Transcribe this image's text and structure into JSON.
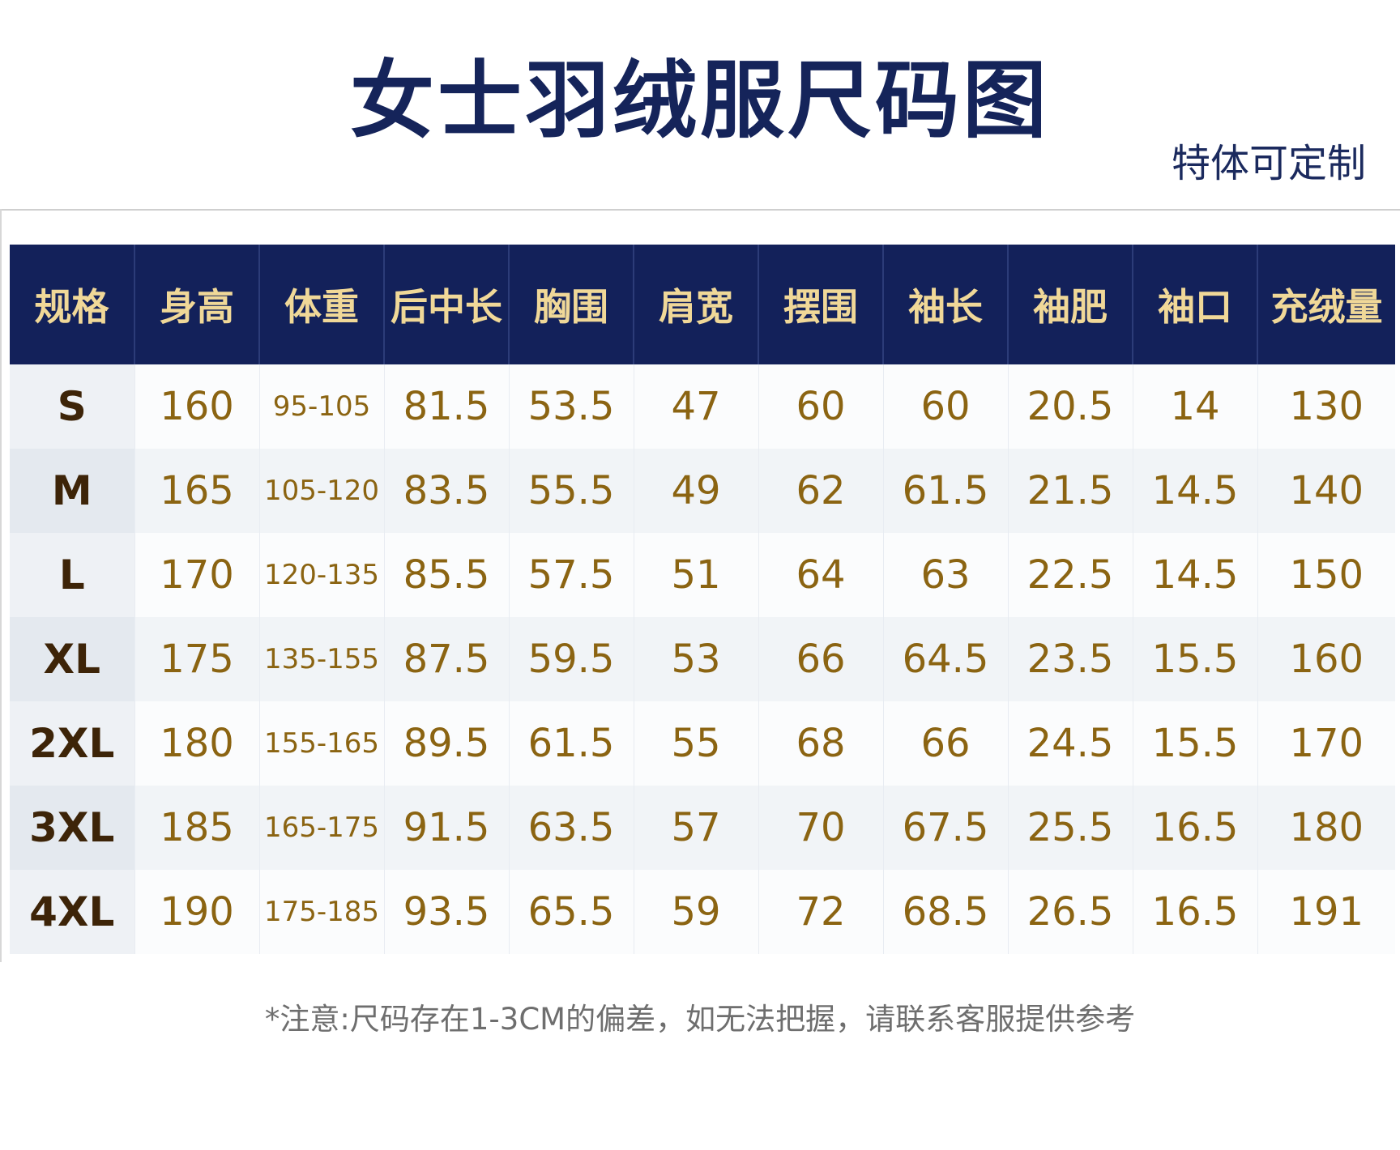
{
  "title": "女士羽绒服尺码图",
  "subtitle": "特体可定制",
  "table": {
    "headers": [
      "规格",
      "身高",
      "体重",
      "后中长",
      "胸围",
      "肩宽",
      "摆围",
      "袖长",
      "袖肥",
      "袖口",
      "充绒量"
    ],
    "rows": [
      [
        "S",
        "160",
        "95-105",
        "81.5",
        "53.5",
        "47",
        "60",
        "60",
        "20.5",
        "14",
        "130"
      ],
      [
        "M",
        "165",
        "105-120",
        "83.5",
        "55.5",
        "49",
        "62",
        "61.5",
        "21.5",
        "14.5",
        "140"
      ],
      [
        "L",
        "170",
        "120-135",
        "85.5",
        "57.5",
        "51",
        "64",
        "63",
        "22.5",
        "14.5",
        "150"
      ],
      [
        "XL",
        "175",
        "135-155",
        "87.5",
        "59.5",
        "53",
        "66",
        "64.5",
        "23.5",
        "15.5",
        "160"
      ],
      [
        "2XL",
        "180",
        "155-165",
        "89.5",
        "61.5",
        "55",
        "68",
        "66",
        "24.5",
        "15.5",
        "170"
      ],
      [
        "3XL",
        "185",
        "165-175",
        "91.5",
        "63.5",
        "57",
        "70",
        "67.5",
        "25.5",
        "16.5",
        "180"
      ],
      [
        "4XL",
        "190",
        "175-185",
        "93.5",
        "65.5",
        "59",
        "72",
        "68.5",
        "26.5",
        "16.5",
        "191"
      ]
    ]
  },
  "note": "*注意:尺码存在1-3CM的偏差，如无法把握，请联系客服提供参考"
}
